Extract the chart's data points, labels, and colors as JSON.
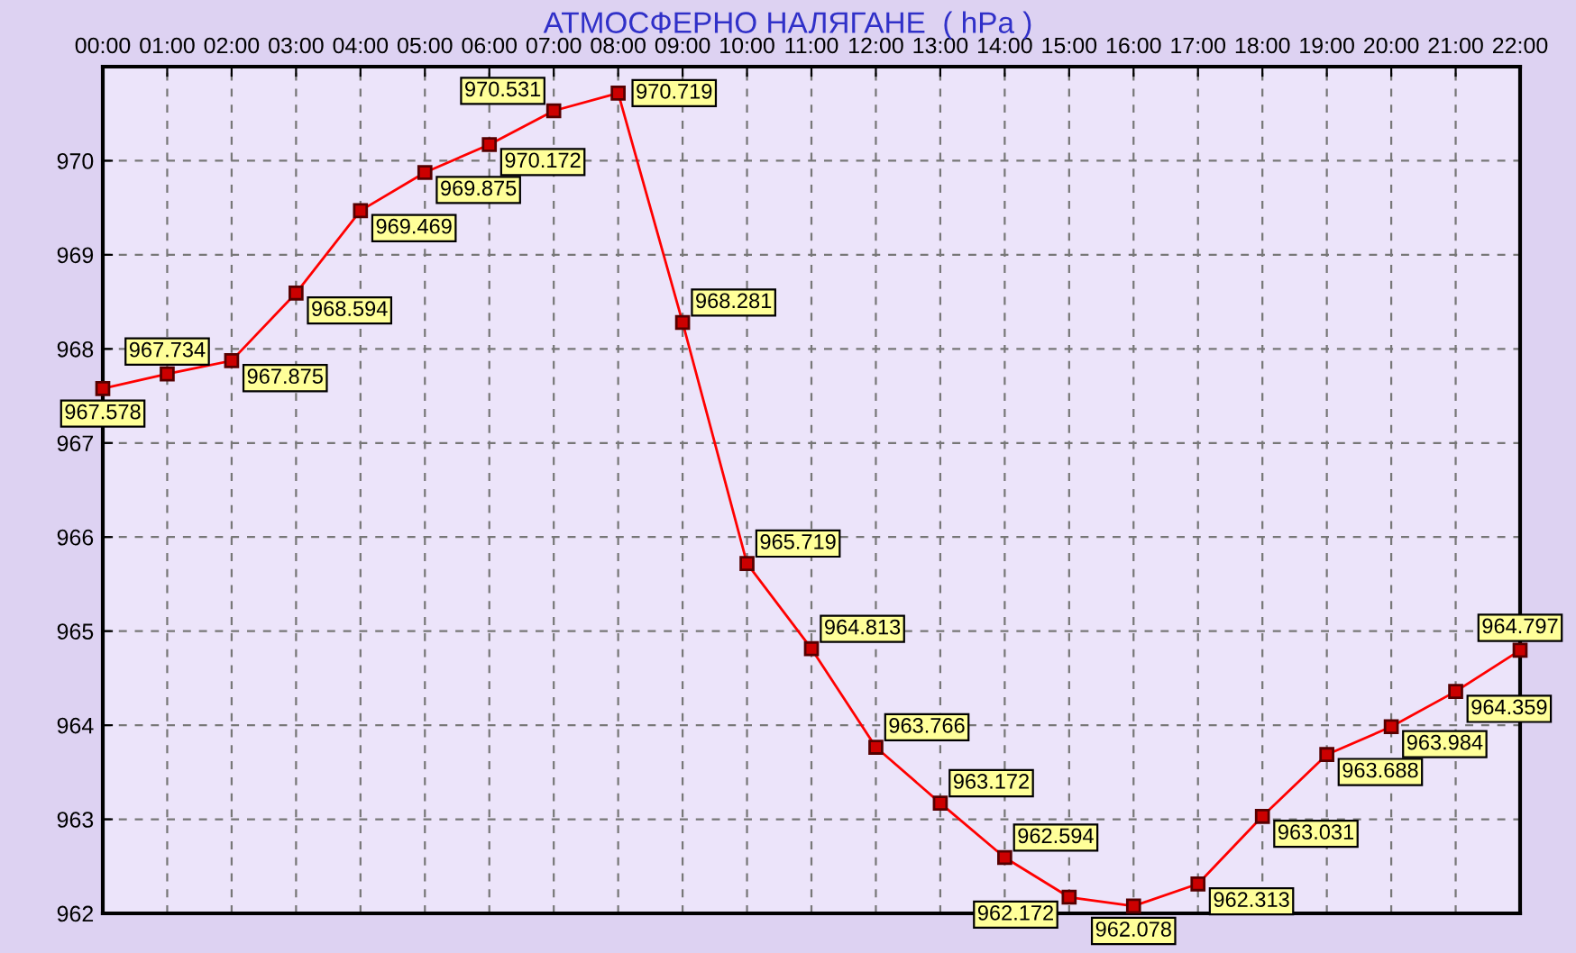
{
  "chart_data": {
    "type": "line",
    "title": "АТМОСФЕРНО НАЛЯГАНЕ  ( hPa )",
    "categories": [
      "00:00",
      "01:00",
      "02:00",
      "03:00",
      "04:00",
      "05:00",
      "06:00",
      "07:00",
      "08:00",
      "09:00",
      "10:00",
      "11:00",
      "12:00",
      "13:00",
      "14:00",
      "15:00",
      "16:00",
      "17:00",
      "18:00",
      "19:00",
      "20:00",
      "21:00",
      "22:00"
    ],
    "series": [
      {
        "color": "#ff0000",
        "values": [
          967.578,
          967.734,
          967.875,
          968.594,
          969.469,
          969.875,
          970.172,
          970.531,
          970.719,
          968.281,
          965.719,
          964.813,
          963.766,
          963.172,
          962.594,
          962.172,
          962.078,
          962.313,
          963.031,
          963.688,
          963.984,
          964.359,
          964.797
        ]
      }
    ],
    "ylim": [
      962,
      971
    ],
    "yticks": [
      962,
      963,
      964,
      965,
      966,
      967,
      968,
      969,
      970
    ],
    "grid": true,
    "marker": "square",
    "line_style": "solid",
    "data_labels": true
  }
}
